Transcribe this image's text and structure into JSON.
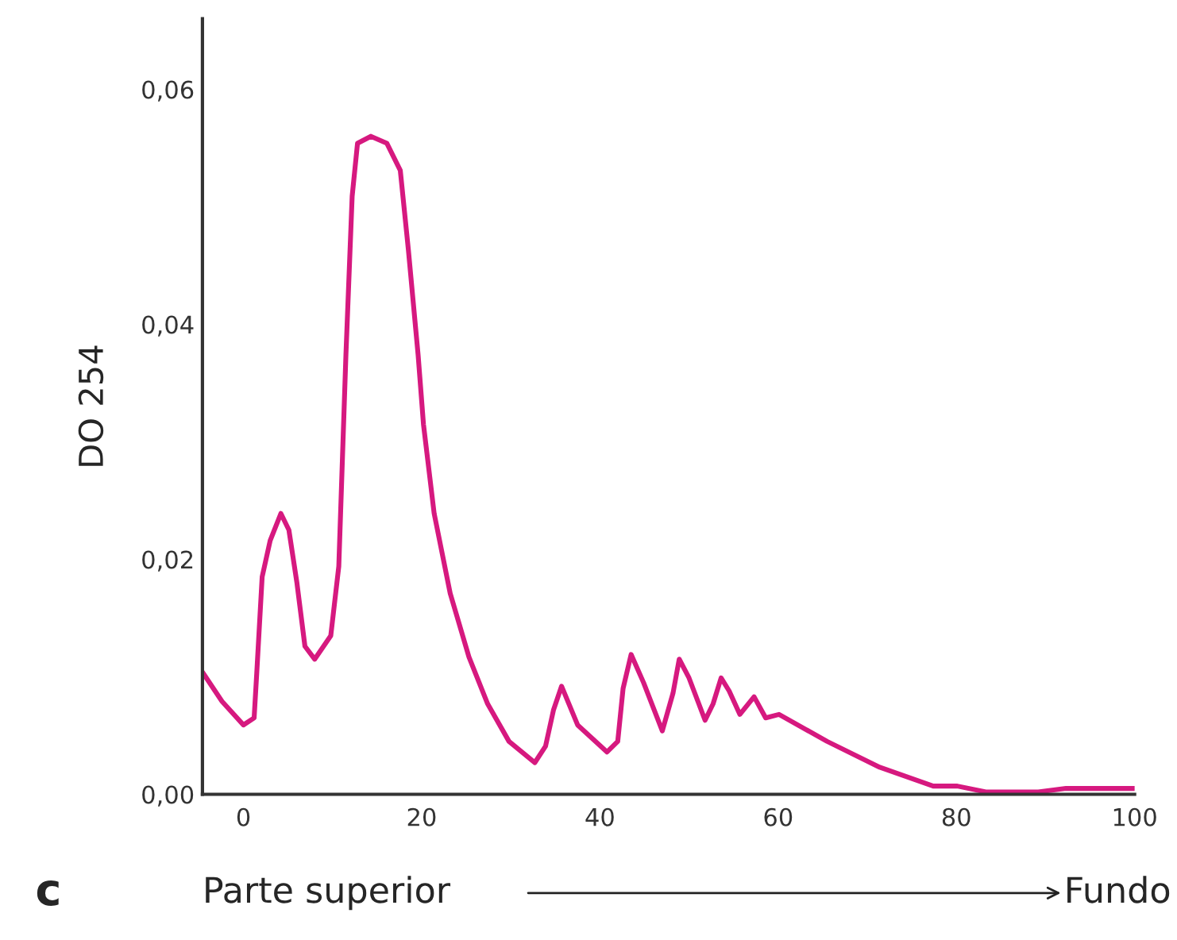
{
  "chart_data": {
    "type": "line",
    "xlabel": "Parte superior",
    "ylabel": "DO 254",
    "annotations": [
      "c",
      "Fundo"
    ],
    "xlim": [
      -4.6,
      100
    ],
    "ylim": [
      0,
      0.066
    ],
    "xticks": [
      0,
      20,
      40,
      60,
      80,
      100
    ],
    "yticks": [
      {
        "value": 0,
        "label": "0,00"
      },
      {
        "value": 0.02,
        "label": "0,02"
      },
      {
        "value": 0.04,
        "label": "0,04"
      },
      {
        "value": 0.06,
        "label": "0,06"
      }
    ],
    "grid": false,
    "legend": false,
    "marker": "none",
    "line_style": "solid",
    "series": [
      {
        "color": "#d6197f",
        "x": [
          -4.6,
          -2.4,
          0,
          1.2,
          1.5,
          2.1,
          3.0,
          4.2,
          5.1,
          6.0,
          6.9,
          8.0,
          9.8,
          10.7,
          11.5,
          12.2,
          12.8,
          14.3,
          16.1,
          17.6,
          18.5,
          19.6,
          20.2,
          21.4,
          23.2,
          25.3,
          27.4,
          29.8,
          32.7,
          33.9,
          34.8,
          35.7,
          37.5,
          40.8,
          42.0,
          42.6,
          43.5,
          44.9,
          47.0,
          48.2,
          48.9,
          50.0,
          51.8,
          52.7,
          53.6,
          54.5,
          55.7,
          57.3,
          58.6,
          60.1,
          65.5,
          71.4,
          77.4,
          80.1,
          83.3,
          89.2,
          92.3,
          100
        ],
        "values": [
          0.0104,
          0.0079,
          0.0059,
          0.0065,
          0.0104,
          0.0185,
          0.0216,
          0.0239,
          0.0225,
          0.018,
          0.0126,
          0.0115,
          0.0135,
          0.0194,
          0.0374,
          0.0509,
          0.0554,
          0.056,
          0.0554,
          0.0531,
          0.0464,
          0.0374,
          0.0315,
          0.0239,
          0.0171,
          0.0117,
          0.0077,
          0.0045,
          0.0027,
          0.0041,
          0.0072,
          0.0092,
          0.0059,
          0.0036,
          0.0045,
          0.009,
          0.0119,
          0.0095,
          0.0054,
          0.0086,
          0.0115,
          0.0099,
          0.0063,
          0.0077,
          0.0099,
          0.0088,
          0.0068,
          0.0083,
          0.0065,
          0.0068,
          0.0045,
          0.0023,
          0.0007,
          0.0007,
          0.0002,
          0.0002,
          0.0005,
          0.0005
        ]
      }
    ]
  }
}
